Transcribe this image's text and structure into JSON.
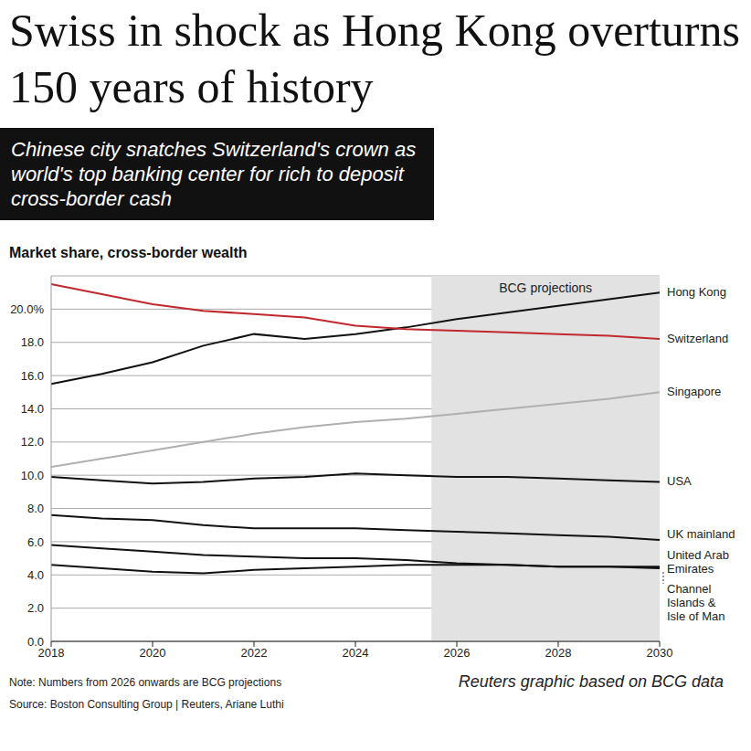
{
  "title": "Swiss in shock as Hong Kong overturns 150 years of history",
  "subtitle": "Chinese city snatches Switzerland's crown as world's top banking center for rich to deposit cross-border cash",
  "note": "Note: Numbers from 2026 onwards are BCG projections",
  "source": "Source: Boston Consulting Group | Reuters, Ariane Luthi",
  "credit": "Reuters graphic based on BCG data",
  "chart_data": {
    "type": "line",
    "ylabel": "Market share, cross-border wealth",
    "x": [
      2018,
      2019,
      2020,
      2021,
      2022,
      2023,
      2024,
      2025,
      2026,
      2027,
      2028,
      2029,
      2030
    ],
    "xlim": [
      2018,
      2030
    ],
    "xticks": [
      2018,
      2020,
      2022,
      2024,
      2026,
      2028,
      2030
    ],
    "ylim": [
      0,
      22
    ],
    "yticks": [
      {
        "value": 0,
        "label": "0.0"
      },
      {
        "value": 2,
        "label": "2.0"
      },
      {
        "value": 4,
        "label": "4.0"
      },
      {
        "value": 6,
        "label": "6.0"
      },
      {
        "value": 8,
        "label": "8.0"
      },
      {
        "value": 10,
        "label": "10.0"
      },
      {
        "value": 12,
        "label": "12.0"
      },
      {
        "value": 14,
        "label": "14.0"
      },
      {
        "value": 16,
        "label": "16.0"
      },
      {
        "value": 18,
        "label": "18.0"
      },
      {
        "value": 20,
        "label": "20.0%"
      }
    ],
    "grid": true,
    "shaded": {
      "label": "BCG projections",
      "x1": 2025.5,
      "x2": 2030
    },
    "series": [
      {
        "name": "Hong Kong",
        "color": "#111111",
        "values": [
          15.5,
          16.1,
          16.8,
          17.8,
          18.5,
          18.2,
          18.5,
          18.9,
          19.4,
          19.8,
          20.2,
          20.6,
          21.0
        ]
      },
      {
        "name": "Switzerland",
        "color": "#c0282d",
        "values": [
          21.5,
          20.9,
          20.3,
          19.9,
          19.7,
          19.5,
          19.0,
          18.8,
          18.7,
          18.6,
          18.5,
          18.4,
          18.2
        ]
      },
      {
        "name": "Singapore",
        "color": "#b0b0b0",
        "values": [
          10.5,
          11.0,
          11.5,
          12.0,
          12.5,
          12.9,
          13.2,
          13.4,
          13.7,
          14.0,
          14.3,
          14.6,
          15.0
        ]
      },
      {
        "name": "USA",
        "color": "#111111",
        "values": [
          9.9,
          9.7,
          9.5,
          9.6,
          9.8,
          9.9,
          10.1,
          10.0,
          9.9,
          9.9,
          9.8,
          9.7,
          9.6
        ]
      },
      {
        "name": "UK mainland",
        "color": "#111111",
        "values": [
          7.6,
          7.4,
          7.3,
          7.0,
          6.8,
          6.8,
          6.8,
          6.7,
          6.6,
          6.5,
          6.4,
          6.3,
          6.1
        ]
      },
      {
        "name": "United Arab Emirates",
        "color": "#111111",
        "values": [
          4.6,
          4.4,
          4.2,
          4.1,
          4.3,
          4.4,
          4.5,
          4.6,
          4.6,
          4.6,
          4.5,
          4.5,
          4.5
        ]
      },
      {
        "name": "Channel Islands & Isle of Man",
        "color": "#111111",
        "values": [
          5.8,
          5.6,
          5.4,
          5.2,
          5.1,
          5.0,
          5.0,
          4.9,
          4.7,
          4.6,
          4.5,
          4.5,
          4.4
        ]
      }
    ]
  }
}
